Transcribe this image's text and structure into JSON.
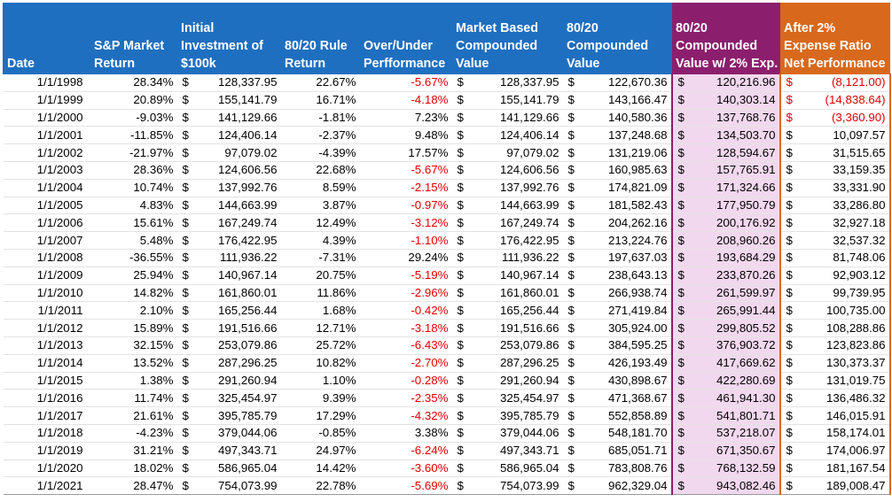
{
  "headers": {
    "date": "Date",
    "sp_return": "S&P Market Return",
    "initial": "Initial Investment of $100k",
    "rule_return": "80/20 Rule Return",
    "over_under": "Over/Under Perfformance",
    "market_value": "Market Based Compounded Value",
    "compounded": "80/20 Compounded Value",
    "compounded_exp": "80/20 Compounded Value w/ 2% Exp.",
    "net_perf": "After 2% Expense Ratio Net Performance"
  },
  "currency_symbol": "$",
  "colors": {
    "header_blue": "#1f6fc0",
    "header_purple": "#8b1f6e",
    "header_orange": "#d8691c",
    "highlight_pink": "#f2d8ee",
    "negative_red": "#e00000"
  },
  "rows": [
    {
      "date": "1/1/1998",
      "sp": "28.34%",
      "init": "128,337.95",
      "rule": "22.67%",
      "ou": "-5.67%",
      "ou_neg": true,
      "mkt": "128,337.95",
      "comp": "122,670.36",
      "comp2": "120,216.96",
      "net": "(8,121.00)",
      "net_neg": true
    },
    {
      "date": "1/1/1999",
      "sp": "20.89%",
      "init": "155,141.79",
      "rule": "16.71%",
      "ou": "-4.18%",
      "ou_neg": true,
      "mkt": "155,141.79",
      "comp": "143,166.47",
      "comp2": "140,303.14",
      "net": "(14,838.64)",
      "net_neg": true
    },
    {
      "date": "1/1/2000",
      "sp": "-9.03%",
      "init": "141,129.66",
      "rule": "-1.81%",
      "ou": "7.23%",
      "ou_neg": false,
      "mkt": "141,129.66",
      "comp": "140,580.36",
      "comp2": "137,768.76",
      "net": "(3,360.90)",
      "net_neg": true
    },
    {
      "date": "1/1/2001",
      "sp": "-11.85%",
      "init": "124,406.14",
      "rule": "-2.37%",
      "ou": "9.48%",
      "ou_neg": false,
      "mkt": "124,406.14",
      "comp": "137,248.68",
      "comp2": "134,503.70",
      "net": "10,097.57",
      "net_neg": false
    },
    {
      "date": "1/1/2002",
      "sp": "-21.97%",
      "init": "97,079.02",
      "rule": "-4.39%",
      "ou": "17.57%",
      "ou_neg": false,
      "mkt": "97,079.02",
      "comp": "131,219.06",
      "comp2": "128,594.67",
      "net": "31,515.65",
      "net_neg": false
    },
    {
      "date": "1/1/2003",
      "sp": "28.36%",
      "init": "124,606.56",
      "rule": "22.68%",
      "ou": "-5.67%",
      "ou_neg": true,
      "mkt": "124,606.56",
      "comp": "160,985.63",
      "comp2": "157,765.91",
      "net": "33,159.35",
      "net_neg": false
    },
    {
      "date": "1/1/2004",
      "sp": "10.74%",
      "init": "137,992.76",
      "rule": "8.59%",
      "ou": "-2.15%",
      "ou_neg": true,
      "mkt": "137,992.76",
      "comp": "174,821.09",
      "comp2": "171,324.66",
      "net": "33,331.90",
      "net_neg": false
    },
    {
      "date": "1/1/2005",
      "sp": "4.83%",
      "init": "144,663.99",
      "rule": "3.87%",
      "ou": "-0.97%",
      "ou_neg": true,
      "mkt": "144,663.99",
      "comp": "181,582.43",
      "comp2": "177,950.79",
      "net": "33,286.80",
      "net_neg": false
    },
    {
      "date": "1/1/2006",
      "sp": "15.61%",
      "init": "167,249.74",
      "rule": "12.49%",
      "ou": "-3.12%",
      "ou_neg": true,
      "mkt": "167,249.74",
      "comp": "204,262.16",
      "comp2": "200,176.92",
      "net": "32,927.18",
      "net_neg": false
    },
    {
      "date": "1/1/2007",
      "sp": "5.48%",
      "init": "176,422.95",
      "rule": "4.39%",
      "ou": "-1.10%",
      "ou_neg": true,
      "mkt": "176,422.95",
      "comp": "213,224.76",
      "comp2": "208,960.26",
      "net": "32,537.32",
      "net_neg": false
    },
    {
      "date": "1/1/2008",
      "sp": "-36.55%",
      "init": "111,936.22",
      "rule": "-7.31%",
      "ou": "29.24%",
      "ou_neg": false,
      "mkt": "111,936.22",
      "comp": "197,637.03",
      "comp2": "193,684.29",
      "net": "81,748.06",
      "net_neg": false
    },
    {
      "date": "1/1/2009",
      "sp": "25.94%",
      "init": "140,967.14",
      "rule": "20.75%",
      "ou": "-5.19%",
      "ou_neg": true,
      "mkt": "140,967.14",
      "comp": "238,643.13",
      "comp2": "233,870.26",
      "net": "92,903.12",
      "net_neg": false
    },
    {
      "date": "1/1/2010",
      "sp": "14.82%",
      "init": "161,860.01",
      "rule": "11.86%",
      "ou": "-2.96%",
      "ou_neg": true,
      "mkt": "161,860.01",
      "comp": "266,938.74",
      "comp2": "261,599.97",
      "net": "99,739.95",
      "net_neg": false
    },
    {
      "date": "1/1/2011",
      "sp": "2.10%",
      "init": "165,256.44",
      "rule": "1.68%",
      "ou": "-0.42%",
      "ou_neg": true,
      "mkt": "165,256.44",
      "comp": "271,419.84",
      "comp2": "265,991.44",
      "net": "100,735.00",
      "net_neg": false
    },
    {
      "date": "1/1/2012",
      "sp": "15.89%",
      "init": "191,516.66",
      "rule": "12.71%",
      "ou": "-3.18%",
      "ou_neg": true,
      "mkt": "191,516.66",
      "comp": "305,924.00",
      "comp2": "299,805.52",
      "net": "108,288.86",
      "net_neg": false
    },
    {
      "date": "1/1/2013",
      "sp": "32.15%",
      "init": "253,079.86",
      "rule": "25.72%",
      "ou": "-6.43%",
      "ou_neg": true,
      "mkt": "253,079.86",
      "comp": "384,595.25",
      "comp2": "376,903.72",
      "net": "123,823.86",
      "net_neg": false
    },
    {
      "date": "1/1/2014",
      "sp": "13.52%",
      "init": "287,296.25",
      "rule": "10.82%",
      "ou": "-2.70%",
      "ou_neg": true,
      "mkt": "287,296.25",
      "comp": "426,193.49",
      "comp2": "417,669.62",
      "net": "130,373.37",
      "net_neg": false
    },
    {
      "date": "1/1/2015",
      "sp": "1.38%",
      "init": "291,260.94",
      "rule": "1.10%",
      "ou": "-0.28%",
      "ou_neg": true,
      "mkt": "291,260.94",
      "comp": "430,898.67",
      "comp2": "422,280.69",
      "net": "131,019.75",
      "net_neg": false
    },
    {
      "date": "1/1/2016",
      "sp": "11.74%",
      "init": "325,454.97",
      "rule": "9.39%",
      "ou": "-2.35%",
      "ou_neg": true,
      "mkt": "325,454.97",
      "comp": "471,368.67",
      "comp2": "461,941.30",
      "net": "136,486.32",
      "net_neg": false
    },
    {
      "date": "1/1/2017",
      "sp": "21.61%",
      "init": "395,785.79",
      "rule": "17.29%",
      "ou": "-4.32%",
      "ou_neg": true,
      "mkt": "395,785.79",
      "comp": "552,858.89",
      "comp2": "541,801.71",
      "net": "146,015.91",
      "net_neg": false
    },
    {
      "date": "1/1/2018",
      "sp": "-4.23%",
      "init": "379,044.06",
      "rule": "-0.85%",
      "ou": "3.38%",
      "ou_neg": false,
      "mkt": "379,044.06",
      "comp": "548,181.70",
      "comp2": "537,218.07",
      "net": "158,174.01",
      "net_neg": false
    },
    {
      "date": "1/1/2019",
      "sp": "31.21%",
      "init": "497,343.71",
      "rule": "24.97%",
      "ou": "-6.24%",
      "ou_neg": true,
      "mkt": "497,343.71",
      "comp": "685,051.71",
      "comp2": "671,350.67",
      "net": "174,006.97",
      "net_neg": false
    },
    {
      "date": "1/1/2020",
      "sp": "18.02%",
      "init": "586,965.04",
      "rule": "14.42%",
      "ou": "-3.60%",
      "ou_neg": true,
      "mkt": "586,965.04",
      "comp": "783,808.76",
      "comp2": "768,132.59",
      "net": "181,167.54",
      "net_neg": false
    },
    {
      "date": "1/1/2021",
      "sp": "28.47%",
      "init": "754,073.99",
      "rule": "22.78%",
      "ou": "-5.69%",
      "ou_neg": true,
      "mkt": "754,073.99",
      "comp": "962,329.04",
      "comp2": "943,082.46",
      "net": "189,008.47",
      "net_neg": false
    }
  ]
}
